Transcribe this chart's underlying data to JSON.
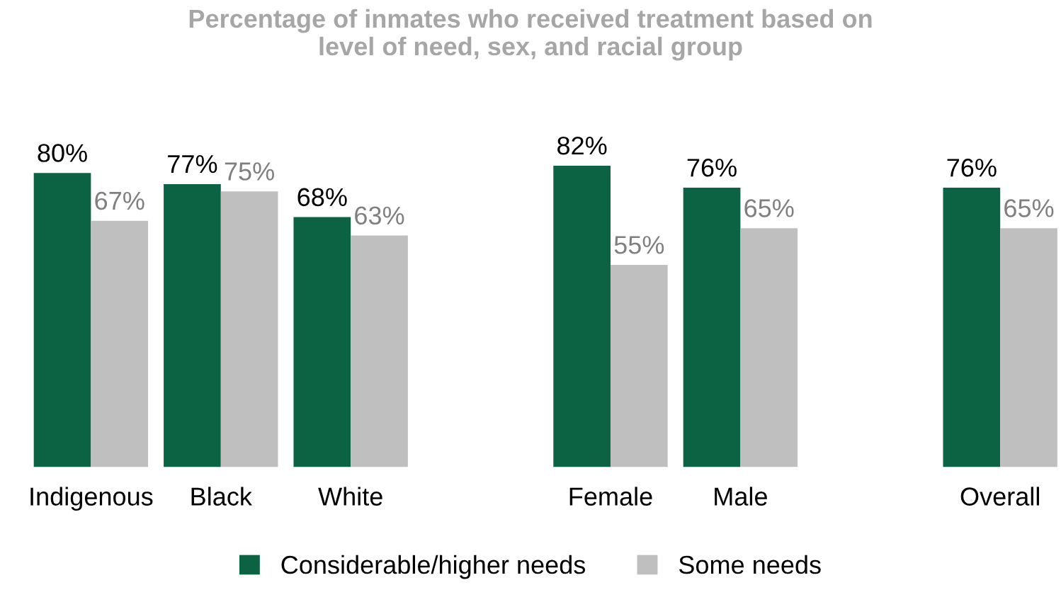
{
  "chart_data": {
    "type": "bar",
    "title": "Percentage of inmates who received treatment based on\nlevel of need, sex, and racial group",
    "categories": [
      "Indigenous",
      "Black",
      "White",
      null,
      "Female",
      "Male",
      null,
      "Overall"
    ],
    "series": [
      {
        "name": "Considerable/higher needs",
        "color": "#0b6344",
        "values": [
          80,
          77,
          68,
          null,
          82,
          76,
          null,
          76
        ],
        "value_labels": [
          "80%",
          "77%",
          "68%",
          null,
          "82%",
          "76%",
          null,
          "76%"
        ]
      },
      {
        "name": "Some needs",
        "color": "#bfbfbf",
        "values": [
          67,
          75,
          63,
          null,
          55,
          65,
          null,
          65
        ],
        "value_labels": [
          "67%",
          "75%",
          "63%",
          null,
          "55%",
          "65%",
          null,
          "65%"
        ]
      }
    ],
    "legend": "bottom",
    "grid": false
  }
}
